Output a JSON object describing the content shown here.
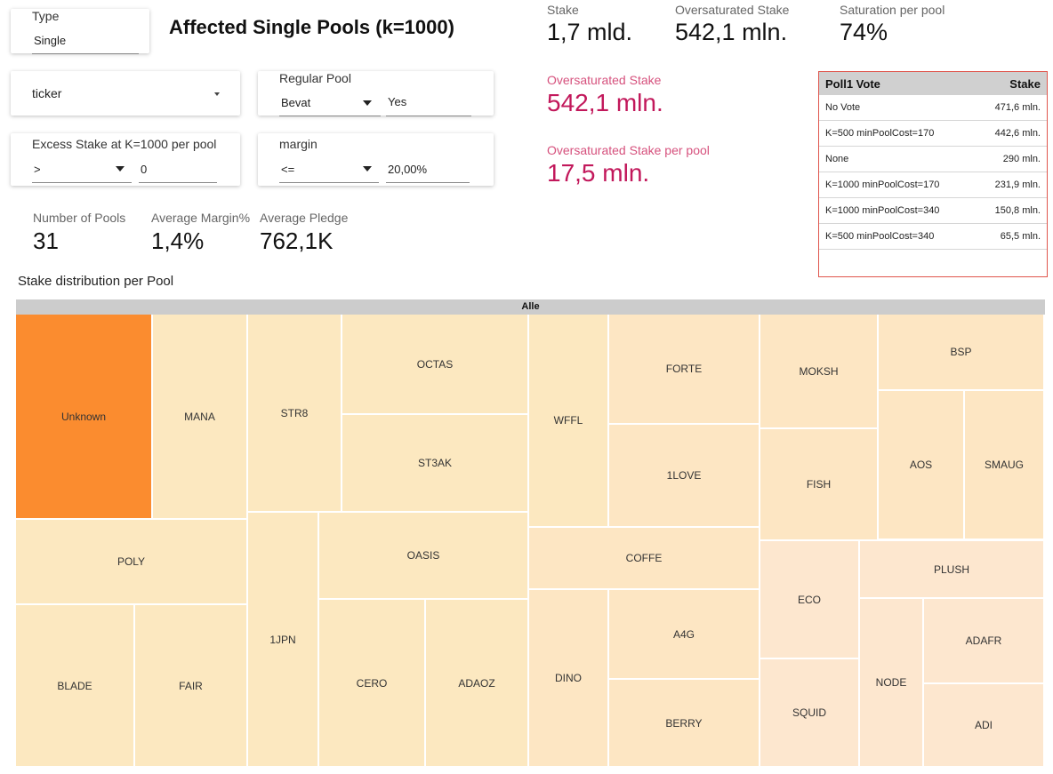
{
  "title": "Affected Single Pools (k=1000)",
  "filters": {
    "type": {
      "label": "Type",
      "value": "Single"
    },
    "ticker": {
      "value": "ticker"
    },
    "regular_pool": {
      "label": "Regular Pool",
      "operator": "Bevat",
      "value": "Yes"
    },
    "excess_stake": {
      "label": "Excess Stake at K=1000 per pool",
      "operator": ">",
      "value": "0"
    },
    "margin": {
      "label": "margin",
      "operator": "<=",
      "value": "20,00%"
    }
  },
  "kpis": {
    "stake": {
      "label": "Stake",
      "value": "1,7 mld."
    },
    "oversaturated_stake": {
      "label": "Oversaturated Stake",
      "value": "542,1 mln."
    },
    "saturation_per_pool": {
      "label": "Saturation per pool",
      "value": "74%"
    },
    "oversaturated_stake_hl": {
      "label": "Oversaturated Stake",
      "value": "542,1 mln."
    },
    "oversaturated_per_pool": {
      "label": "Oversaturated Stake per pool",
      "value": "17,5 mln."
    },
    "number_of_pools": {
      "label": "Number of Pools",
      "value": "31"
    },
    "average_margin": {
      "label": "Average Margin%",
      "value": "1,4%"
    },
    "average_pledge": {
      "label": "Average Pledge",
      "value": "762,1K"
    }
  },
  "vote_table": {
    "headers": [
      "Poll1 Vote",
      "Stake"
    ],
    "rows": [
      [
        "No Vote",
        "471,6 mln."
      ],
      [
        "K=500 minPoolCost=170",
        "442,6 mln."
      ],
      [
        "None",
        "290 mln."
      ],
      [
        "K=1000 minPoolCost=170",
        "231,9 mln."
      ],
      [
        "K=1000 minPoolCost=340",
        "150,8 mln."
      ],
      [
        "K=500 minPoolCost=340",
        "65,5 mln."
      ]
    ]
  },
  "chart_data": {
    "type": "treemap",
    "title": "Stake distribution per Pool",
    "root": "Alle",
    "categories": [
      "Unknown",
      "MANA",
      "STR8",
      "OCTAS",
      "ST3AK",
      "WFFL",
      "FORTE",
      "1LOVE",
      "MOKSH",
      "FISH",
      "BSP",
      "AOS",
      "SMAUG",
      "POLY",
      "OASIS",
      "1JPN",
      "COFFE",
      "ECO",
      "PLUSH",
      "BLADE",
      "FAIR",
      "CERO",
      "ADAOZ",
      "DINO",
      "A4G",
      "BERRY",
      "SQUID",
      "NODE",
      "ADAFR",
      "ADI"
    ],
    "values": [
      35.6,
      19.1,
      23.8,
      24.4,
      22.8,
      20.6,
      19.9,
      20.0,
      18.7,
      19.3,
      12.4,
      10.3,
      13.5,
      20.1,
      18.3,
      21.9,
      17.4,
      12.5,
      8.4,
      15.5,
      16.4,
      17.7,
      14.1,
      15.0,
      13.3,
      12.9,
      12.1,
      12.4,
      9.9,
      9.5
    ],
    "colors": {
      "highest": "#fb8c2f",
      "high": "#fce8c0",
      "mid": "#fde6c3",
      "low": "#fde7cf"
    }
  }
}
